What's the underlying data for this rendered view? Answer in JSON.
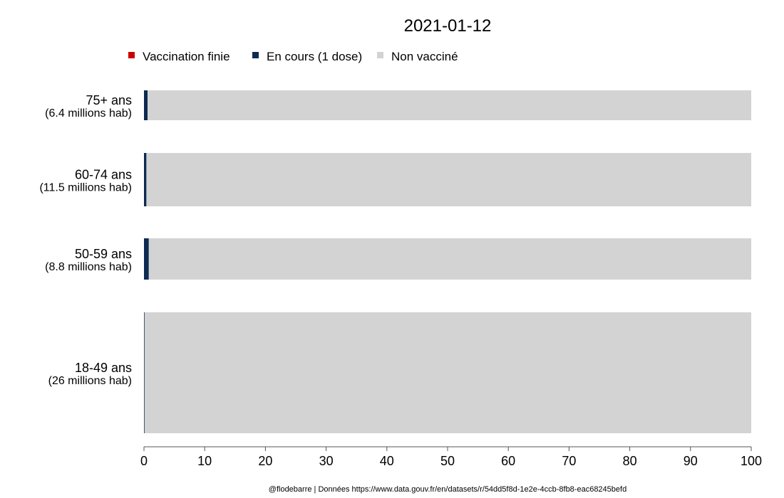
{
  "chart_data": {
    "type": "bar",
    "orientation": "horizontal",
    "stacked": true,
    "title": "2021-01-12",
    "caption": "@flodebarre | Données https://www.data.gouv.fr/en/datasets/r/54dd5f8d-1e2e-4ccb-8fb8-eac68245befd",
    "xlim": [
      0,
      100
    ],
    "xticks": [
      "0",
      "10",
      "20",
      "30",
      "40",
      "50",
      "60",
      "70",
      "80",
      "90",
      "100"
    ],
    "legend_position": "top",
    "categories": [
      {
        "label": "75+ ans",
        "sublabel": "(6.4 millions hab)",
        "population_millions": 6.4
      },
      {
        "label": "60-74 ans",
        "sublabel": "(11.5 millions hab)",
        "population_millions": 11.5
      },
      {
        "label": "50-59 ans",
        "sublabel": "(8.8 millions hab)",
        "population_millions": 8.8
      },
      {
        "label": "18-49 ans",
        "sublabel": "(26 millions hab)",
        "population_millions": 26
      }
    ],
    "series": [
      {
        "name": "Vaccination finie",
        "color": "#cc0000",
        "values": [
          0,
          0,
          0,
          0
        ]
      },
      {
        "name": "En cours (1 dose)",
        "color": "#0d2a52",
        "values": [
          0.6,
          0.4,
          0.8,
          0.1
        ]
      },
      {
        "name": "Non vacciné",
        "color": "#d3d3d3",
        "values": [
          99.4,
          99.6,
          99.2,
          99.9
        ]
      }
    ]
  }
}
